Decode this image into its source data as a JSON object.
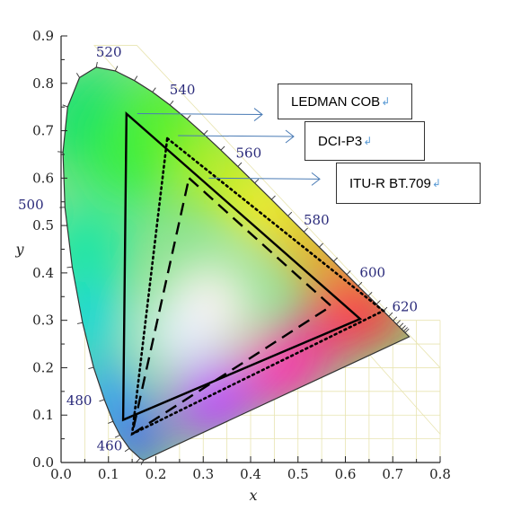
{
  "chart_data": {
    "type": "scatter",
    "title": "",
    "xlabel": "x",
    "ylabel": "y",
    "xlim": [
      0.0,
      0.8
    ],
    "ylim": [
      0.0,
      0.9
    ],
    "x_ticks": [
      "0.0",
      "0.1",
      "0.2",
      "0.3",
      "0.4",
      "0.5",
      "0.6",
      "0.7",
      "0.8"
    ],
    "y_ticks": [
      "0.0",
      "0.1",
      "0.2",
      "0.3",
      "0.4",
      "0.5",
      "0.6",
      "0.7",
      "0.8",
      "0.9"
    ],
    "grid": false,
    "spectral_locus": [
      [
        0.1741,
        0.005
      ],
      [
        0.1666,
        0.0089
      ],
      [
        0.144,
        0.0297
      ],
      [
        0.1241,
        0.0578
      ],
      [
        0.1096,
        0.0868
      ],
      [
        0.0913,
        0.1327
      ],
      [
        0.0687,
        0.2007
      ],
      [
        0.0454,
        0.295
      ],
      [
        0.0235,
        0.4127
      ],
      [
        0.0082,
        0.5384
      ],
      [
        0.0039,
        0.6548
      ],
      [
        0.0139,
        0.7502
      ],
      [
        0.0389,
        0.812
      ],
      [
        0.0743,
        0.8338
      ],
      [
        0.1142,
        0.8262
      ],
      [
        0.1547,
        0.8059
      ],
      [
        0.1929,
        0.7816
      ],
      [
        0.2296,
        0.7543
      ],
      [
        0.2658,
        0.7243
      ],
      [
        0.3016,
        0.6923
      ],
      [
        0.3373,
        0.6589
      ],
      [
        0.3731,
        0.6245
      ],
      [
        0.4087,
        0.5896
      ],
      [
        0.4441,
        0.5547
      ],
      [
        0.4788,
        0.5202
      ],
      [
        0.5125,
        0.4866
      ],
      [
        0.5448,
        0.4544
      ],
      [
        0.5752,
        0.4242
      ],
      [
        0.6029,
        0.3965
      ],
      [
        0.627,
        0.3725
      ],
      [
        0.6482,
        0.3514
      ],
      [
        0.6658,
        0.334
      ],
      [
        0.6801,
        0.3197
      ],
      [
        0.6915,
        0.3083
      ],
      [
        0.7006,
        0.2993
      ],
      [
        0.7079,
        0.292
      ],
      [
        0.714,
        0.2859
      ],
      [
        0.719,
        0.2809
      ],
      [
        0.723,
        0.277
      ],
      [
        0.726,
        0.274
      ],
      [
        0.7347,
        0.2653
      ]
    ],
    "wavelength_labels": [
      {
        "text": "460",
        "x": 0.144,
        "y": 0.0297
      },
      {
        "text": "480",
        "x": 0.0913,
        "y": 0.1327
      },
      {
        "text": "500",
        "x": 0.0082,
        "y": 0.5384
      },
      {
        "text": "520",
        "x": 0.0743,
        "y": 0.8338
      },
      {
        "text": "540",
        "x": 0.2296,
        "y": 0.7543
      },
      {
        "text": "560",
        "x": 0.3731,
        "y": 0.6245
      },
      {
        "text": "580",
        "x": 0.5125,
        "y": 0.4866
      },
      {
        "text": "600",
        "x": 0.627,
        "y": 0.3725
      },
      {
        "text": "620",
        "x": 0.6915,
        "y": 0.3083
      }
    ],
    "series": [
      {
        "name": "LEDMAN COB",
        "style": "solid",
        "points": [
          [
            0.138,
            0.736
          ],
          [
            0.631,
            0.303
          ],
          [
            0.131,
            0.09
          ]
        ]
      },
      {
        "name": "DCI-P3",
        "style": "dotted",
        "points": [
          [
            0.224,
            0.684
          ],
          [
            0.68,
            0.32
          ],
          [
            0.15,
            0.06
          ]
        ]
      },
      {
        "name": "ITU-R BT.709",
        "style": "dashed",
        "points": [
          [
            0.27,
            0.6
          ],
          [
            0.57,
            0.33
          ],
          [
            0.15,
            0.06
          ]
        ]
      }
    ],
    "legend": [
      {
        "label": "LEDMAN COB",
        "mark": "↲"
      },
      {
        "label": "DCI-P3",
        "mark": "↲"
      },
      {
        "label": "ITU-R BT.709",
        "mark": "↲"
      }
    ],
    "colors": {
      "arrow": "#4a7bb5",
      "line": "#000000",
      "wavelength_text": "#2a2a7a",
      "grid_box": "#e8e4b0"
    }
  }
}
